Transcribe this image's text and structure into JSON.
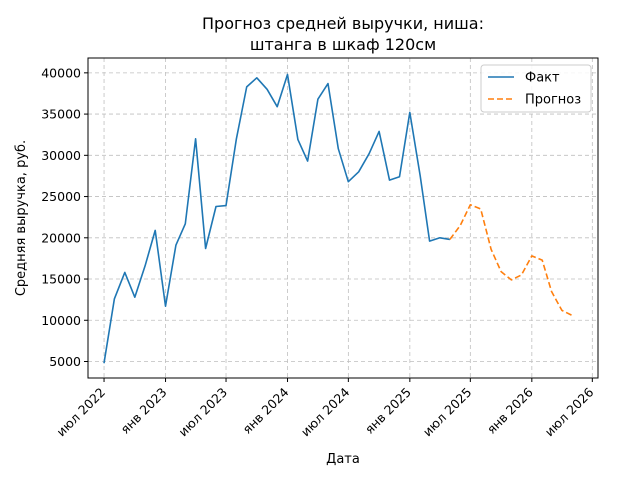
{
  "chart_data": {
    "type": "line",
    "title_line1": "Прогноз средней выручки, ниша:",
    "title_line2": "штанга в шкаф 120см",
    "xlabel": "Дата",
    "ylabel": "Средняя выручка, руб.",
    "x_ticks": [
      "июл 2022",
      "янв 2023",
      "июл 2023",
      "янв 2024",
      "июл 2024",
      "янв 2025",
      "июл 2025",
      "янв 2026",
      "июл 2026"
    ],
    "y_ticks": [
      5000,
      10000,
      15000,
      20000,
      25000,
      30000,
      35000,
      40000
    ],
    "ylim": [
      3000,
      41800
    ],
    "xlim": [
      "2022-05-14",
      "2026-07-18"
    ],
    "grid": true,
    "legend_position": "top-right",
    "series": [
      {
        "name": "Факт",
        "color": "#1f77b4",
        "style": "solid",
        "x": [
          "2022-07",
          "2022-08",
          "2022-09",
          "2022-10",
          "2022-11",
          "2022-12",
          "2023-01",
          "2023-02",
          "2023-03",
          "2023-04",
          "2023-05",
          "2023-06",
          "2023-07",
          "2023-08",
          "2023-09",
          "2023-10",
          "2023-11",
          "2023-12",
          "2024-01",
          "2024-02",
          "2024-03",
          "2024-04",
          "2024-05",
          "2024-06",
          "2024-07",
          "2024-08",
          "2024-09",
          "2024-10",
          "2024-11",
          "2024-12",
          "2025-01",
          "2025-02",
          "2025-03",
          "2025-04",
          "2025-05"
        ],
        "y": [
          4800,
          12600,
          15800,
          12800,
          16600,
          20900,
          11700,
          19100,
          21700,
          32000,
          18700,
          23800,
          23900,
          32000,
          38300,
          39400,
          38000,
          35900,
          39800,
          31900,
          29300,
          36800,
          38700,
          30800,
          26800,
          28000,
          30200,
          32900,
          27000,
          27400,
          35200,
          27500,
          19600,
          20000,
          19800
        ]
      },
      {
        "name": "Прогноз",
        "color": "#ff7f0e",
        "style": "dashed",
        "x": [
          "2025-05",
          "2025-06",
          "2025-07",
          "2025-08",
          "2025-09",
          "2025-10",
          "2025-11",
          "2025-12",
          "2026-01",
          "2026-02",
          "2026-03",
          "2026-04",
          "2026-05"
        ],
        "y": [
          19800,
          21500,
          24000,
          23500,
          18600,
          15900,
          14900,
          15500,
          17800,
          17300,
          13500,
          11200,
          10600
        ]
      }
    ]
  }
}
